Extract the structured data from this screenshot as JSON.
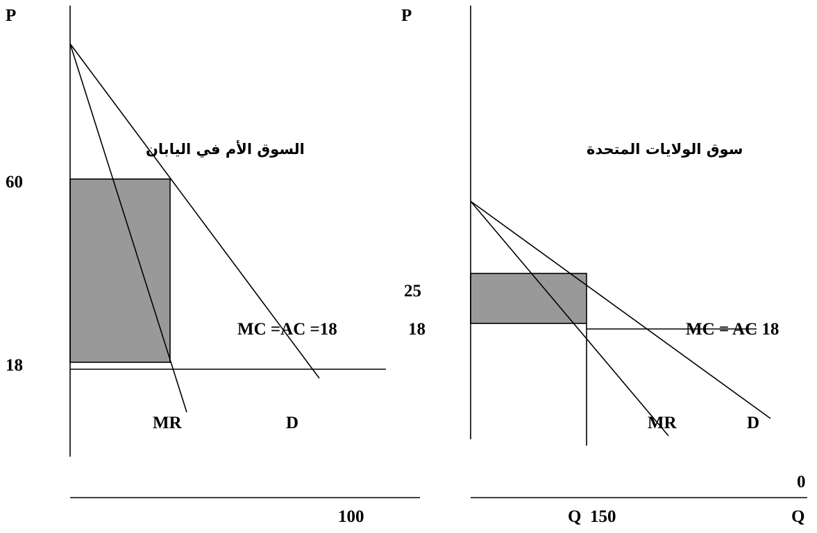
{
  "left_panel": {
    "title": "السوق الأم في اليابان",
    "axis_p": "P",
    "tick_60": "60",
    "tick_18": "18",
    "mc_label": "MC =AC =18",
    "mr_label": "MR",
    "d_label": "D",
    "q_tick": "100"
  },
  "right_panel": {
    "title": "سوق الولايات المتحدة",
    "axis_p": "P",
    "tick_25": "25",
    "tick_18": "18",
    "mc_label": "MC = AC 18",
    "mr_label": "MR",
    "d_label": "D",
    "origin": "0",
    "q_tick": "Q  150",
    "q_axis": "Q"
  },
  "colors": {
    "profit_fill": "#999999",
    "line": "#000000"
  }
}
